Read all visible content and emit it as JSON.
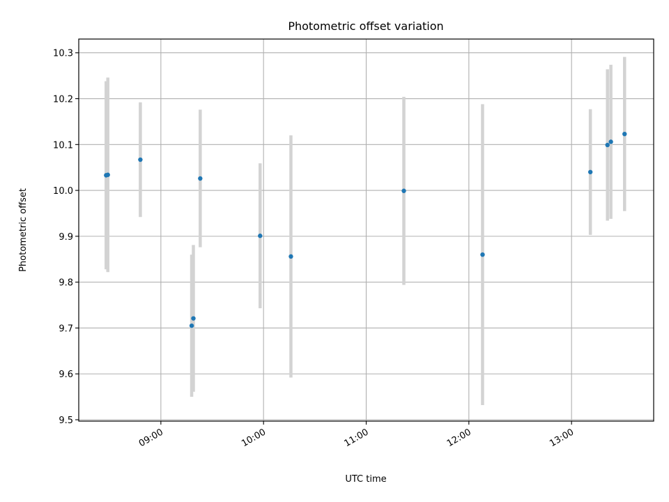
{
  "chart_data": {
    "type": "scatter",
    "title": "Photometric offset variation",
    "xlabel": "UTC time",
    "ylabel": "Photometric offset",
    "x_axis_kind": "time",
    "xlim": [
      "08:12",
      "13:48"
    ],
    "ylim": [
      9.497,
      10.33
    ],
    "grid": true,
    "x_ticks": [
      "09:00",
      "10:00",
      "11:00",
      "12:00",
      "13:00"
    ],
    "y_ticks": [
      "9.5",
      "9.6",
      "9.7",
      "9.8",
      "9.9",
      "10.0",
      "10.1",
      "10.2",
      "10.3"
    ],
    "colors": {
      "marker": "#1f77b4",
      "errorbar": "#d3d3d3",
      "grid": "#b0b0b0"
    },
    "points": [
      {
        "x": "08:28",
        "y": 10.033,
        "yerr": 0.205
      },
      {
        "x": "08:29",
        "y": 10.034,
        "yerr": 0.212
      },
      {
        "x": "08:48",
        "y": 10.067,
        "yerr": 0.125
      },
      {
        "x": "09:18",
        "y": 9.705,
        "yerr": 0.155
      },
      {
        "x": "09:19",
        "y": 9.721,
        "yerr": 0.16
      },
      {
        "x": "09:23",
        "y": 10.026,
        "yerr": 0.15
      },
      {
        "x": "09:58",
        "y": 9.901,
        "yerr": 0.158
      },
      {
        "x": "10:16",
        "y": 9.856,
        "yerr": 0.264
      },
      {
        "x": "11:22",
        "y": 9.999,
        "yerr": 0.205
      },
      {
        "x": "12:08",
        "y": 9.86,
        "yerr": 0.328
      },
      {
        "x": "13:11",
        "y": 10.04,
        "yerr": 0.137
      },
      {
        "x": "13:21",
        "y": 10.099,
        "yerr": 0.165
      },
      {
        "x": "13:23",
        "y": 10.106,
        "yerr": 0.168
      },
      {
        "x": "13:31",
        "y": 10.123,
        "yerr": 0.168
      }
    ]
  }
}
